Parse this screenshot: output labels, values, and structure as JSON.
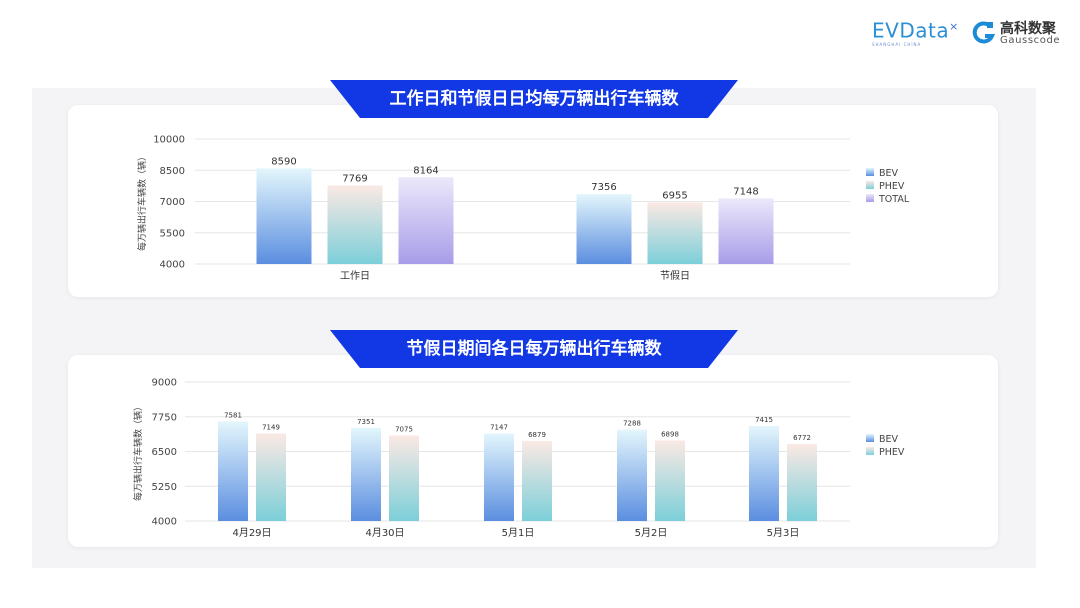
{
  "logos": {
    "evdata": "EVData",
    "evdata_sub": "SHANGHAI CHINA",
    "gauss_cn": "高科数聚",
    "gauss_en": "Gausscode"
  },
  "colors": {
    "banner": "#1238e6",
    "BEV": [
      "#e3f6fc",
      "#5b8ee0"
    ],
    "PHEV": [
      "#fbe9e4",
      "#7ccfd9"
    ],
    "TOTAL": [
      "#ece8fb",
      "#a79de8"
    ]
  },
  "chart_data": [
    {
      "type": "bar",
      "title": "工作日和节假日日均每万辆出行车辆数",
      "ylabel": "每万辆出行车辆数（辆）",
      "xlabel": "",
      "categories": [
        "工作日",
        "节假日"
      ],
      "series": [
        {
          "name": "BEV",
          "values": [
            8590,
            7356
          ]
        },
        {
          "name": "PHEV",
          "values": [
            7769,
            6955
          ]
        },
        {
          "name": "TOTAL",
          "values": [
            8164,
            7148
          ]
        }
      ],
      "ylim": [
        4000,
        10000
      ],
      "yticks": [
        4000,
        5500,
        7000,
        8500,
        10000
      ],
      "grid": true,
      "legend": "right"
    },
    {
      "type": "bar",
      "title": "节假日期间各日每万辆出行车辆数",
      "ylabel": "每万辆出行车辆数（辆）",
      "xlabel": "",
      "categories": [
        "4月29日",
        "4月30日",
        "5月1日",
        "5月2日",
        "5月3日"
      ],
      "series": [
        {
          "name": "BEV",
          "values": [
            7581,
            7351,
            7147,
            7288,
            7415
          ]
        },
        {
          "name": "PHEV",
          "values": [
            7149,
            7075,
            6879,
            6898,
            6772
          ]
        }
      ],
      "ylim": [
        4000,
        9000
      ],
      "yticks": [
        4000,
        5250,
        6500,
        7750,
        9000
      ],
      "grid": true,
      "legend": "right"
    }
  ]
}
